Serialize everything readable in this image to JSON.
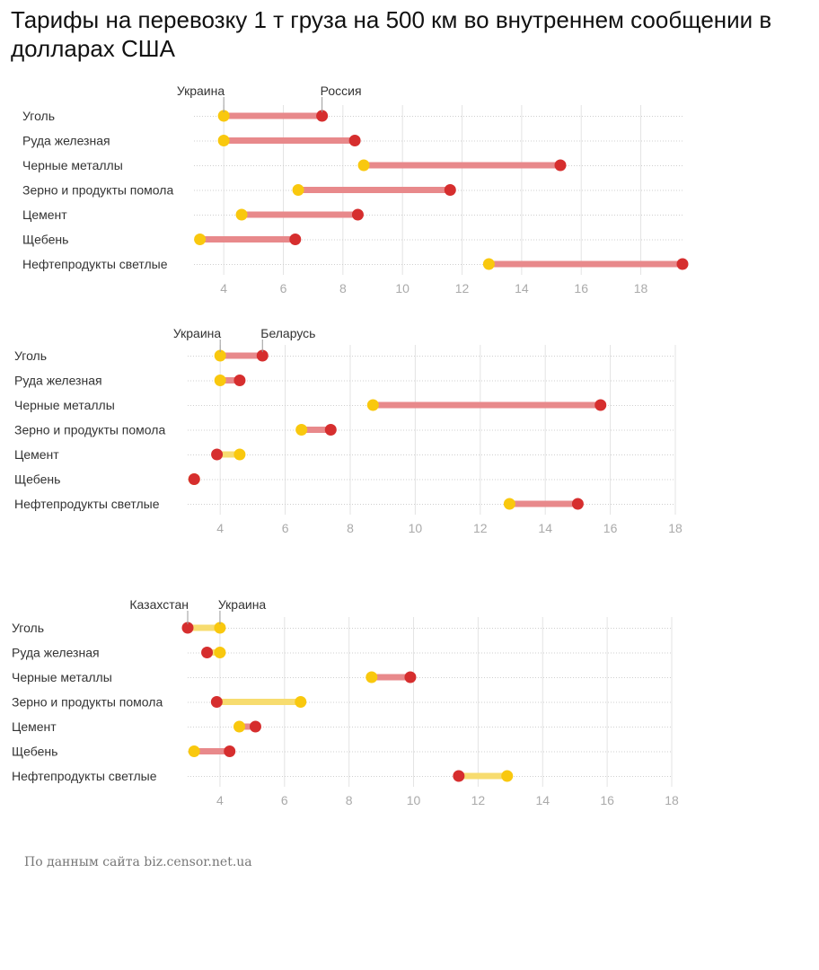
{
  "title": "Тарифы на перевозку 1 т груза на 500 км во внутреннем сообщении в долларах США",
  "source": "По данным сайта biz.censor.net.ua",
  "colors": {
    "ukraine": "#f9c80e",
    "other": "#d62e2e",
    "bar_red": "#e8898b",
    "bar_yellow": "#f7dc6f",
    "tick": "#aaaaaa",
    "grid": "#e3e3e3"
  },
  "chart_data": [
    {
      "type": "dumbbell",
      "categories": [
        "Уголь",
        "Руда железная",
        "Черные металлы",
        "Зерно и продукты помола",
        "Цемент",
        "Щебень",
        "Нефтепродукты светлые"
      ],
      "series": [
        {
          "name": "Украина",
          "color": "#f9c80e",
          "values": [
            4.0,
            4.0,
            8.7,
            6.5,
            4.6,
            3.2,
            12.9
          ]
        },
        {
          "name": "Россия",
          "color": "#d62e2e",
          "values": [
            7.3,
            8.4,
            15.3,
            11.6,
            8.5,
            6.4,
            19.4
          ]
        }
      ],
      "xlim": [
        3.0,
        19.4
      ],
      "xticks": [
        4,
        6,
        8,
        10,
        12,
        14,
        16,
        18
      ]
    },
    {
      "type": "dumbbell",
      "categories": [
        "Уголь",
        "Руда железная",
        "Черные металлы",
        "Зерно и продукты помола",
        "Цемент",
        "Щебень",
        "Нефтепродукты светлые"
      ],
      "series": [
        {
          "name": "Украина",
          "color": "#f9c80e",
          "values": [
            4.0,
            4.0,
            8.7,
            6.5,
            4.6,
            3.2,
            12.9
          ]
        },
        {
          "name": "Беларусь",
          "color": "#d62e2e",
          "values": [
            5.3,
            4.6,
            15.7,
            7.4,
            3.9,
            3.2,
            15.0
          ]
        }
      ],
      "xlim": [
        3.0,
        18.0
      ],
      "xticks": [
        4,
        6,
        8,
        10,
        12,
        14,
        16,
        18
      ]
    },
    {
      "type": "dumbbell",
      "categories": [
        "Уголь",
        "Руда железная",
        "Черные металлы",
        "Зерно и продукты помола",
        "Цемент",
        "Щебень",
        "Нефтепродукты светлые"
      ],
      "series": [
        {
          "name": "Казахстан",
          "color": "#d62e2e",
          "values": [
            3.0,
            3.6,
            9.9,
            3.9,
            5.1,
            4.3,
            11.4
          ]
        },
        {
          "name": "Украина",
          "color": "#f9c80e",
          "values": [
            4.0,
            4.0,
            8.7,
            6.5,
            4.6,
            3.2,
            12.9
          ]
        }
      ],
      "xlim": [
        3.0,
        18.0
      ],
      "xticks": [
        4,
        6,
        8,
        10,
        12,
        14,
        16,
        18
      ]
    }
  ]
}
